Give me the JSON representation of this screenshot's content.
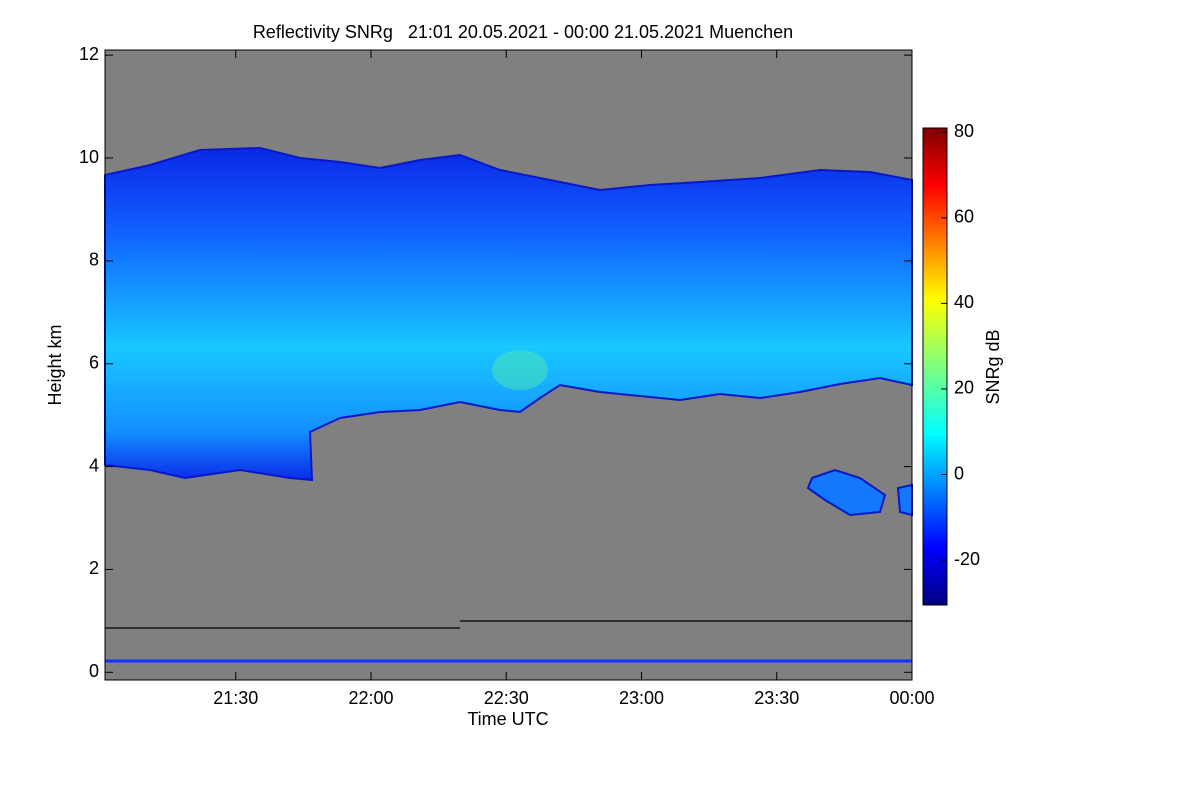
{
  "chart_data": {
    "type": "heatmap",
    "title": "Reflectivity SNRg   21:01 20.05.2021 - 00:00 21.05.2021 Muenchen",
    "xlabel": "Time UTC",
    "ylabel": "Height km",
    "colorbar_label": "SNRg dB",
    "xlim": [
      21.0167,
      24
    ],
    "xticks": [
      {
        "value": 21.5,
        "label": "21:30"
      },
      {
        "value": 22,
        "label": "22:00"
      },
      {
        "value": 22.5,
        "label": "22:30"
      },
      {
        "value": 23,
        "label": "23:00"
      },
      {
        "value": 23.5,
        "label": "23:30"
      },
      {
        "value": 24,
        "label": "00:00"
      }
    ],
    "ylim": [
      -0.15,
      12.1
    ],
    "yticks": [
      0,
      2,
      4,
      6,
      8,
      10,
      12
    ],
    "clim": [
      -30.5,
      81
    ],
    "cticks": [
      -20,
      0,
      20,
      40,
      60,
      80
    ]
  }
}
